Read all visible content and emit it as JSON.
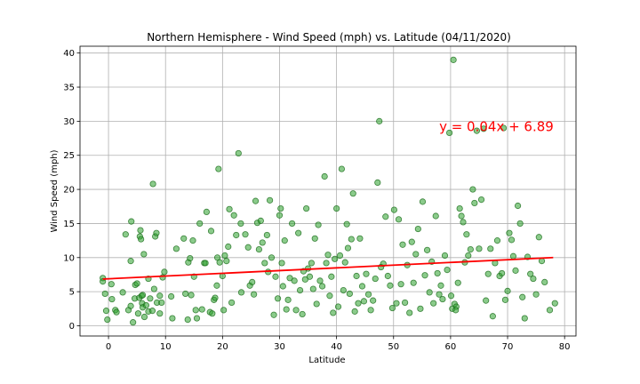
{
  "chart_data": {
    "type": "scatter",
    "title": "Northern Hemisphere - Wind Speed (mph) vs. Latitude (04/11/2020)",
    "xlabel": "Latitude",
    "ylabel": "Wind Speed (mph)",
    "xlim": [
      -5,
      82
    ],
    "ylim": [
      -1.5,
      41
    ],
    "xticks": [
      0,
      10,
      20,
      30,
      40,
      50,
      60,
      70,
      80
    ],
    "yticks": [
      0,
      5,
      10,
      15,
      20,
      25,
      30,
      35,
      40
    ],
    "grid": true,
    "point_color": "#2ca02c",
    "regression_color": "#ff0000",
    "regression": {
      "slope": 0.04,
      "intercept": 6.89,
      "x_range": [
        -1,
        78
      ],
      "equation_text": "y = 0.04x + 6.89",
      "annotation_at": [
        58,
        29.2
      ]
    },
    "points": [
      [
        -1,
        7
      ],
      [
        -1,
        6.5
      ],
      [
        -0.6,
        4.7
      ],
      [
        -0.4,
        2.2
      ],
      [
        -0.2,
        0.9
      ],
      [
        0.5,
        6.1
      ],
      [
        0.6,
        3.9
      ],
      [
        1.2,
        2.3
      ],
      [
        1.4,
        2
      ],
      [
        2.5,
        4.9
      ],
      [
        3,
        13.4
      ],
      [
        3.5,
        2.3
      ],
      [
        3.9,
        9.5
      ],
      [
        3.9,
        2.9
      ],
      [
        4,
        15.3
      ],
      [
        4.3,
        0.5
      ],
      [
        4.6,
        4
      ],
      [
        4.7,
        6
      ],
      [
        5,
        6.2
      ],
      [
        5.2,
        1.8
      ],
      [
        5.4,
        4.1
      ],
      [
        5.5,
        13.1
      ],
      [
        5.6,
        14
      ],
      [
        5.7,
        12.7
      ],
      [
        5.8,
        4.4
      ],
      [
        5.9,
        3.3
      ],
      [
        6,
        4.5
      ],
      [
        6,
        2.7
      ],
      [
        6.2,
        10.5
      ],
      [
        6.3,
        1.3
      ],
      [
        6.6,
        3
      ],
      [
        7,
        2.1
      ],
      [
        7,
        6.9
      ],
      [
        7.3,
        4
      ],
      [
        7.7,
        2.2
      ],
      [
        7.8,
        20.8
      ],
      [
        8,
        5.4
      ],
      [
        8.2,
        13.1
      ],
      [
        8.4,
        13.6
      ],
      [
        8.5,
        3.4
      ],
      [
        9,
        4.4
      ],
      [
        9,
        1.8
      ],
      [
        9.3,
        3.4
      ],
      [
        9.5,
        7.1
      ],
      [
        9.8,
        7.9
      ],
      [
        11,
        4.3
      ],
      [
        11.2,
        1.1
      ],
      [
        11.9,
        11.3
      ],
      [
        13.2,
        12.8
      ],
      [
        13.5,
        4.7
      ],
      [
        13.9,
        0.9
      ],
      [
        14,
        9.3
      ],
      [
        14.3,
        9.9
      ],
      [
        14.5,
        4.5
      ],
      [
        14.8,
        12.5
      ],
      [
        15,
        7.2
      ],
      [
        15.3,
        2.3
      ],
      [
        15.5,
        1.1
      ],
      [
        16,
        15
      ],
      [
        16.4,
        2.4
      ],
      [
        16.8,
        9.2
      ],
      [
        17,
        9.2
      ],
      [
        17.2,
        16.7
      ],
      [
        17.8,
        2
      ],
      [
        18,
        13.9
      ],
      [
        18.2,
        1.8
      ],
      [
        18.5,
        3.8
      ],
      [
        18.7,
        4.1
      ],
      [
        19,
        5.9
      ],
      [
        19.1,
        10
      ],
      [
        19.3,
        23
      ],
      [
        19.5,
        9.3
      ],
      [
        20,
        7.3
      ],
      [
        20.2,
        2.3
      ],
      [
        20.4,
        10.3
      ],
      [
        20.7,
        9.5
      ],
      [
        21,
        11.6
      ],
      [
        21.2,
        17.1
      ],
      [
        21.6,
        3.4
      ],
      [
        22,
        16.2
      ],
      [
        22.4,
        13.3
      ],
      [
        22.8,
        25.3
      ],
      [
        23.2,
        15
      ],
      [
        23.3,
        4.9
      ],
      [
        24,
        13.4
      ],
      [
        24.5,
        11.5
      ],
      [
        24.8,
        5.9
      ],
      [
        25.2,
        6.4
      ],
      [
        25.5,
        4.6
      ],
      [
        25.8,
        18.3
      ],
      [
        26.1,
        15.1
      ],
      [
        26.4,
        11.2
      ],
      [
        26.7,
        15.4
      ],
      [
        27,
        12.2
      ],
      [
        27.4,
        9.2
      ],
      [
        27.8,
        13.3
      ],
      [
        28,
        7.9
      ],
      [
        28.3,
        18.4
      ],
      [
        28.6,
        10
      ],
      [
        29,
        1.6
      ],
      [
        29.3,
        7.2
      ],
      [
        29.7,
        4
      ],
      [
        30,
        16.2
      ],
      [
        30.2,
        17.2
      ],
      [
        30.4,
        9.2
      ],
      [
        30.6,
        5.8
      ],
      [
        30.9,
        12.5
      ],
      [
        31.2,
        2.4
      ],
      [
        31.5,
        3.8
      ],
      [
        31.8,
        7
      ],
      [
        32.2,
        15
      ],
      [
        32.6,
        6.6
      ],
      [
        32.9,
        2.3
      ],
      [
        33.3,
        13.6
      ],
      [
        33.6,
        5.2
      ],
      [
        34,
        1.7
      ],
      [
        34.2,
        8
      ],
      [
        34.5,
        6.8
      ],
      [
        34.7,
        17.2
      ],
      [
        35,
        8.4
      ],
      [
        35.3,
        7.2
      ],
      [
        35.6,
        9.2
      ],
      [
        35.9,
        5.4
      ],
      [
        36.2,
        12.8
      ],
      [
        36.5,
        3.2
      ],
      [
        36.8,
        14.8
      ],
      [
        37.1,
        6.6
      ],
      [
        37.5,
        5.8
      ],
      [
        37.9,
        21.9
      ],
      [
        38.2,
        9.2
      ],
      [
        38.5,
        10.4
      ],
      [
        38.8,
        4.4
      ],
      [
        39.1,
        7.2
      ],
      [
        39.4,
        1.9
      ],
      [
        39.7,
        9.8
      ],
      [
        40,
        17.2
      ],
      [
        40.3,
        2.8
      ],
      [
        40.6,
        10.3
      ],
      [
        40.9,
        23
      ],
      [
        41.2,
        5.2
      ],
      [
        41.5,
        9.3
      ],
      [
        41.8,
        14.9
      ],
      [
        42,
        11.4
      ],
      [
        42.3,
        4.7
      ],
      [
        42.6,
        12.7
      ],
      [
        42.9,
        19.4
      ],
      [
        43.2,
        2.1
      ],
      [
        43.5,
        7.3
      ],
      [
        43.8,
        3.3
      ],
      [
        44.1,
        12.8
      ],
      [
        44.5,
        5.8
      ],
      [
        44.8,
        3.6
      ],
      [
        45.2,
        7.6
      ],
      [
        45.6,
        4.6
      ],
      [
        46,
        2.3
      ],
      [
        46.4,
        3.7
      ],
      [
        46.8,
        6.9
      ],
      [
        47.2,
        21
      ],
      [
        47.5,
        30
      ],
      [
        47.8,
        8.6
      ],
      [
        48.2,
        9.1
      ],
      [
        48.6,
        16
      ],
      [
        49,
        7.3
      ],
      [
        49.4,
        5.9
      ],
      [
        49.8,
        2.6
      ],
      [
        50.1,
        17
      ],
      [
        50.5,
        3.3
      ],
      [
        50.9,
        15.6
      ],
      [
        51.3,
        6.1
      ],
      [
        51.6,
        11.9
      ],
      [
        52,
        3.4
      ],
      [
        52.4,
        8.9
      ],
      [
        52.8,
        1.9
      ],
      [
        53.2,
        12.3
      ],
      [
        53.5,
        6.3
      ],
      [
        53.9,
        10.5
      ],
      [
        54.3,
        14.2
      ],
      [
        54.7,
        2.5
      ],
      [
        55.1,
        18.2
      ],
      [
        55.5,
        7.4
      ],
      [
        55.9,
        11.1
      ],
      [
        56.3,
        4.9
      ],
      [
        56.7,
        9.4
      ],
      [
        57,
        3.3
      ],
      [
        57.4,
        16.1
      ],
      [
        57.7,
        7.7
      ],
      [
        58,
        4.6
      ],
      [
        58.3,
        5.9
      ],
      [
        58.6,
        3.9
      ],
      [
        59,
        10.3
      ],
      [
        59.4,
        8.2
      ],
      [
        59.8,
        28.3
      ],
      [
        60.1,
        4.4
      ],
      [
        60.3,
        2.5
      ],
      [
        60.5,
        39
      ],
      [
        60.7,
        3.2
      ],
      [
        61,
        2.8
      ],
      [
        61.3,
        6.3
      ],
      [
        61.6,
        17.2
      ],
      [
        61.9,
        16.1
      ],
      [
        62.2,
        15.2
      ],
      [
        62.5,
        9.3
      ],
      [
        62.8,
        13.4
      ],
      [
        63.1,
        10.3
      ],
      [
        63.5,
        11.2
      ],
      [
        63.9,
        20
      ],
      [
        64.2,
        18
      ],
      [
        64.6,
        28.6
      ],
      [
        65,
        11.3
      ],
      [
        65.4,
        18.5
      ],
      [
        65.8,
        28.9
      ],
      [
        66.2,
        3.7
      ],
      [
        66.6,
        7.6
      ],
      [
        67,
        11.3
      ],
      [
        67.4,
        1.4
      ],
      [
        67.8,
        9.2
      ],
      [
        68.2,
        12.5
      ],
      [
        68.6,
        7.3
      ],
      [
        69,
        7.7
      ],
      [
        69.3,
        29
      ],
      [
        69.6,
        3.8
      ],
      [
        70,
        5.1
      ],
      [
        70.3,
        13.6
      ],
      [
        70.7,
        12.6
      ],
      [
        71,
        10.2
      ],
      [
        71.4,
        8.1
      ],
      [
        71.8,
        17.6
      ],
      [
        72.2,
        15
      ],
      [
        72.6,
        4.2
      ],
      [
        73,
        1.1
      ],
      [
        73.5,
        10.1
      ],
      [
        74,
        7.6
      ],
      [
        74.5,
        6.9
      ],
      [
        75,
        4.6
      ],
      [
        75.5,
        13
      ],
      [
        76,
        9.5
      ],
      [
        76.5,
        6.4
      ],
      [
        77.4,
        2.3
      ],
      [
        78.3,
        3.3
      ],
      [
        60.9,
        2.3
      ]
    ]
  }
}
